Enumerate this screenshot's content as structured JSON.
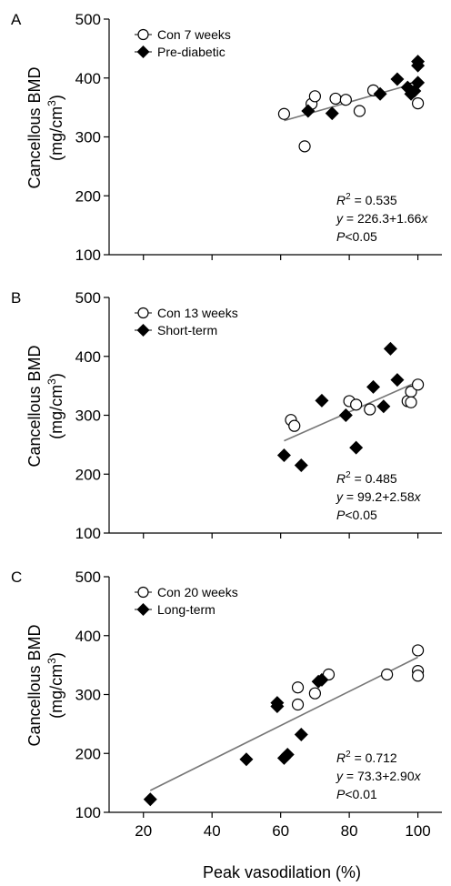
{
  "figure": {
    "shared_xlabel": "Peak vasodilation (%)",
    "y_label": [
      "Cancellous BMD",
      "(mg/cm",
      "3",
      ")"
    ]
  },
  "chart_data": [
    {
      "type": "scatter",
      "panel": "A",
      "xlim": [
        10,
        107
      ],
      "ylim": [
        100,
        500
      ],
      "yticks": [
        100,
        200,
        300,
        400,
        500
      ],
      "xticks": [],
      "legend_position": "top-left",
      "series": [
        {
          "name": "Con 7 weeks",
          "marker": "open-circle",
          "points": [
            [
              61,
              339
            ],
            [
              67,
              284
            ],
            [
              69,
              356
            ],
            [
              70,
              369
            ],
            [
              76,
              365
            ],
            [
              79,
              363
            ],
            [
              83,
              344
            ],
            [
              87,
              379
            ],
            [
              98,
              382
            ],
            [
              100,
              357
            ]
          ]
        },
        {
          "name": "Pre-diabetic",
          "marker": "filled-diamond",
          "points": [
            [
              68,
              344
            ],
            [
              75,
              340
            ],
            [
              89,
              373
            ],
            [
              94,
              398
            ],
            [
              97,
              384
            ],
            [
              98,
              373
            ],
            [
              99,
              378
            ],
            [
              100,
              392
            ],
            [
              100,
              421
            ],
            [
              100,
              428
            ]
          ]
        }
      ],
      "fit": {
        "intercept": 226.3,
        "slope": 1.66,
        "x_range": [
          61,
          100
        ]
      },
      "annotation": {
        "r2_prefix": "R",
        "r2_sup": "2",
        "r2_value": " = 0.535",
        "eq_y": "y",
        "eq_mid": " = 226.3+1.66",
        "eq_x": "x",
        "p_prefix": "P",
        "p_value": "<0.05"
      }
    },
    {
      "type": "scatter",
      "panel": "B",
      "xlim": [
        10,
        107
      ],
      "ylim": [
        100,
        500
      ],
      "yticks": [
        100,
        200,
        300,
        400,
        500
      ],
      "xticks": [],
      "legend_position": "top-left",
      "series": [
        {
          "name": "Con 13 weeks",
          "marker": "open-circle",
          "points": [
            [
              63,
              292
            ],
            [
              64,
              282
            ],
            [
              80,
              324
            ],
            [
              82,
              318
            ],
            [
              86,
              310
            ],
            [
              97,
              324
            ],
            [
              98,
              340
            ],
            [
              98,
              322
            ],
            [
              100,
              352
            ]
          ]
        },
        {
          "name": "Short-term",
          "marker": "filled-diamond",
          "points": [
            [
              61,
              232
            ],
            [
              66,
              215
            ],
            [
              72,
              325
            ],
            [
              79,
              300
            ],
            [
              82,
              245
            ],
            [
              87,
              348
            ],
            [
              90,
              315
            ],
            [
              92,
              413
            ],
            [
              94,
              360
            ]
          ]
        }
      ],
      "fit": {
        "intercept": 99.2,
        "slope": 2.58,
        "x_range": [
          61,
          100
        ]
      },
      "annotation": {
        "r2_prefix": "R",
        "r2_sup": "2",
        "r2_value": " = 0.485",
        "eq_y": "y",
        "eq_mid": " = 99.2+2.58",
        "eq_x": "x",
        "p_prefix": "P",
        "p_value": "<0.05"
      }
    },
    {
      "type": "scatter",
      "panel": "C",
      "xlim": [
        10,
        107
      ],
      "ylim": [
        100,
        500
      ],
      "yticks": [
        100,
        200,
        300,
        400,
        500
      ],
      "xticks": [
        20,
        40,
        60,
        80,
        100
      ],
      "legend_position": "top-left",
      "series": [
        {
          "name": "Con 20 weeks",
          "marker": "open-circle",
          "points": [
            [
              65,
              312
            ],
            [
              65,
              283
            ],
            [
              70,
              302
            ],
            [
              74,
              334
            ],
            [
              91,
              334
            ],
            [
              100,
              375
            ],
            [
              100,
              340
            ],
            [
              100,
              332
            ]
          ]
        },
        {
          "name": "Long-term",
          "marker": "filled-diamond",
          "points": [
            [
              22,
              122
            ],
            [
              50,
              190
            ],
            [
              59,
              280
            ],
            [
              59,
              286
            ],
            [
              61,
              192
            ],
            [
              62,
              198
            ],
            [
              66,
              232
            ],
            [
              71,
              322
            ],
            [
              72,
              325
            ]
          ]
        }
      ],
      "fit": {
        "intercept": 73.3,
        "slope": 2.9,
        "x_range": [
          22,
          100
        ]
      },
      "annotation": {
        "r2_prefix": "R",
        "r2_sup": "2",
        "r2_value": " = 0.712",
        "eq_y": "y",
        "eq_mid": " = 73.3+2.90",
        "eq_x": "x",
        "p_prefix": "P",
        "p_value": "<0.01"
      }
    }
  ]
}
